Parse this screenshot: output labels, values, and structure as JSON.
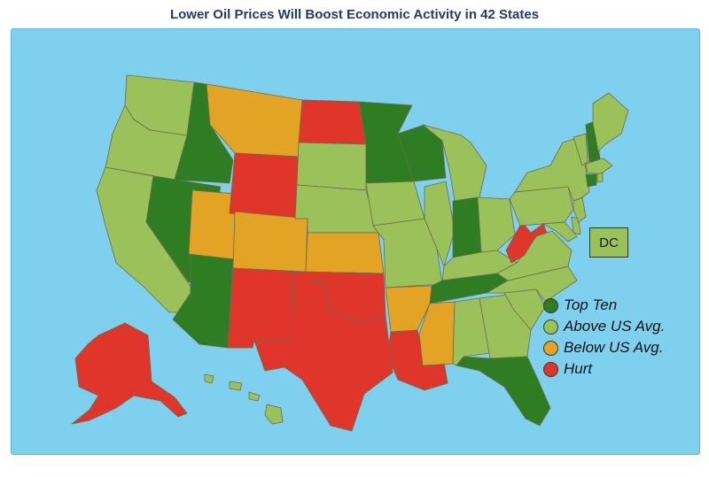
{
  "title": "Lower Oil Prices Will Boost Economic Activity in 42 States",
  "dc_label": "DC",
  "colors": {
    "top_ten": "#2e7d22",
    "above": "#9bc25a",
    "below": "#e3a325",
    "hurt": "#e0352b",
    "water": "#7fd0ee"
  },
  "legend": [
    {
      "label": "Top Ten",
      "category": "top_ten"
    },
    {
      "label": "Above US Avg.",
      "category": "above"
    },
    {
      "label": "Below US Avg.",
      "category": "below"
    },
    {
      "label": "Hurt",
      "category": "hurt"
    }
  ],
  "states": {
    "WA": "above",
    "OR": "above",
    "CA": "above",
    "ID": "top_ten",
    "NV": "top_ten",
    "AZ": "top_ten",
    "MT": "below",
    "UT": "below",
    "CO": "below",
    "KS": "below",
    "AR": "below",
    "MS": "below",
    "WY": "hurt",
    "ND": "hurt",
    "NM": "hurt",
    "TX": "hurt",
    "OK": "hurt",
    "LA": "hurt",
    "WV": "hurt",
    "AK": "hurt",
    "SD": "above",
    "NE": "above",
    "MN": "top_ten",
    "IA": "above",
    "MO": "above",
    "WI": "top_ten",
    "IL": "above",
    "MI": "above",
    "IN": "top_ten",
    "OH": "above",
    "KY": "above",
    "TN": "top_ten",
    "AL": "above",
    "GA": "above",
    "FL": "top_ten",
    "SC": "above",
    "NC": "above",
    "VA": "above",
    "PA": "above",
    "NY": "above",
    "VT": "above",
    "NH": "top_ten",
    "ME": "above",
    "MA": "above",
    "RI": "above",
    "CT": "top_ten",
    "NJ": "above",
    "DE": "above",
    "MD": "above",
    "HI": "above",
    "DC": "above"
  }
}
